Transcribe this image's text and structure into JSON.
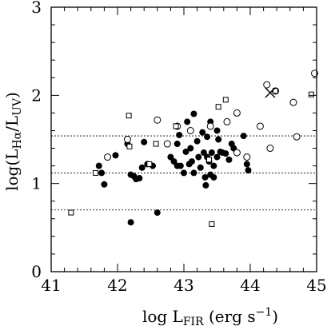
{
  "chart_data": {
    "type": "scatter",
    "title": "",
    "xlabel": {
      "main": "log L",
      "sub": "FIR",
      "rest": " (erg s",
      "sup": "−1",
      "end": ")"
    },
    "ylabel": {
      "open": "log(L",
      "sub1": "Hα",
      "slash": "/L",
      "sub2": "UV",
      "close": ")"
    },
    "xlim": [
      41,
      45
    ],
    "ylim": [
      0,
      3
    ],
    "xticks": [
      41,
      42,
      43,
      44,
      45
    ],
    "yticks": [
      0,
      1,
      2,
      3
    ],
    "reference_lines": [
      0.7,
      1.12,
      1.54
    ],
    "series": [
      {
        "marker": "filled-circle",
        "color": "#000000",
        "points": [
          [
            41.72,
            1.2
          ],
          [
            41.76,
            1.12
          ],
          [
            41.8,
            0.99
          ],
          [
            41.97,
            1.32
          ],
          [
            42.15,
            1.45
          ],
          [
            42.2,
            1.1
          ],
          [
            42.2,
            0.56
          ],
          [
            42.25,
            1.08
          ],
          [
            42.28,
            1.05
          ],
          [
            42.33,
            1.06
          ],
          [
            42.37,
            1.18
          ],
          [
            42.4,
            1.47
          ],
          [
            42.45,
            1.22
          ],
          [
            42.53,
            1.2
          ],
          [
            42.6,
            0.67
          ],
          [
            42.8,
            1.3
          ],
          [
            42.85,
            1.25
          ],
          [
            42.9,
            1.45
          ],
          [
            42.9,
            1.2
          ],
          [
            42.93,
            1.55
          ],
          [
            42.95,
            1.2
          ],
          [
            43.0,
            1.12
          ],
          [
            43.03,
            1.36
          ],
          [
            43.05,
            1.7
          ],
          [
            43.08,
            1.22
          ],
          [
            43.1,
            1.4
          ],
          [
            43.12,
            1.25
          ],
          [
            43.15,
            1.79
          ],
          [
            43.15,
            1.12
          ],
          [
            43.2,
            1.48
          ],
          [
            43.22,
            1.3
          ],
          [
            43.25,
            1.18
          ],
          [
            43.28,
            1.58
          ],
          [
            43.3,
            1.35
          ],
          [
            43.32,
            1.07
          ],
          [
            43.33,
            0.98
          ],
          [
            43.35,
            1.3
          ],
          [
            43.35,
            1.53
          ],
          [
            43.38,
            1.25
          ],
          [
            43.4,
            1.1
          ],
          [
            43.4,
            1.7
          ],
          [
            43.42,
            1.35
          ],
          [
            43.45,
            1.2
          ],
          [
            43.45,
            1.07
          ],
          [
            43.5,
            1.3
          ],
          [
            43.5,
            1.6
          ],
          [
            43.52,
            1.5
          ],
          [
            43.55,
            1.36
          ],
          [
            43.58,
            1.35
          ],
          [
            43.63,
            1.34
          ],
          [
            43.68,
            1.27
          ],
          [
            43.72,
            1.45
          ],
          [
            43.75,
            1.4
          ],
          [
            43.9,
            1.54
          ],
          [
            43.95,
            1.22
          ],
          [
            43.97,
            1.15
          ]
        ]
      },
      {
        "marker": "open-circle",
        "color": "#000000",
        "points": [
          [
            41.85,
            1.3
          ],
          [
            42.15,
            1.5
          ],
          [
            42.6,
            1.72
          ],
          [
            42.75,
            1.45
          ],
          [
            42.9,
            1.65
          ],
          [
            43.1,
            1.6
          ],
          [
            43.4,
            1.65
          ],
          [
            43.65,
            1.7
          ],
          [
            43.8,
            1.8
          ],
          [
            43.8,
            1.35
          ],
          [
            43.95,
            1.3
          ],
          [
            44.15,
            1.65
          ],
          [
            44.25,
            2.12
          ],
          [
            44.3,
            1.4
          ],
          [
            44.38,
            2.05
          ],
          [
            44.65,
            1.92
          ],
          [
            44.7,
            1.53
          ],
          [
            44.97,
            2.25
          ]
        ]
      },
      {
        "marker": "open-square",
        "color": "#000000",
        "points": [
          [
            41.3,
            0.67
          ],
          [
            41.67,
            1.12
          ],
          [
            42.17,
            1.77
          ],
          [
            42.18,
            1.42
          ],
          [
            42.48,
            1.22
          ],
          [
            42.58,
            1.45
          ],
          [
            42.88,
            1.65
          ],
          [
            43.38,
            1.27
          ],
          [
            43.42,
            0.54
          ],
          [
            43.52,
            1.87
          ],
          [
            43.63,
            1.95
          ],
          [
            44.38,
            2.05
          ],
          [
            44.92,
            2.01
          ]
        ]
      },
      {
        "marker": "cross",
        "color": "#000000",
        "points": [
          [
            44.3,
            2.03
          ]
        ]
      }
    ]
  }
}
